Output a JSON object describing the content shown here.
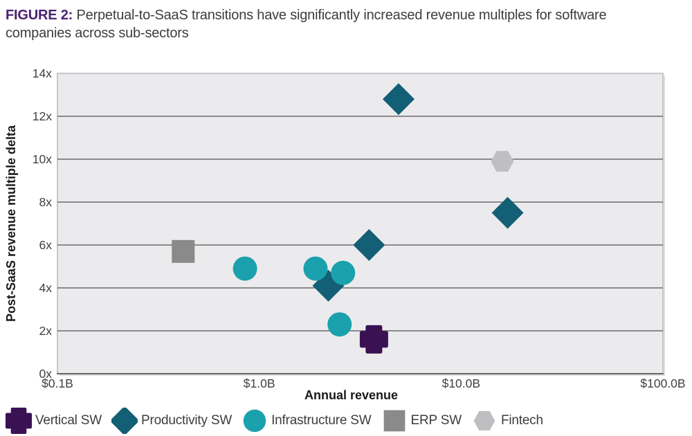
{
  "figure": {
    "label": "FIGURE 2:",
    "title": "Perpetual-to-SaaS transitions have significantly increased revenue multiples for software companies across sub-sectors"
  },
  "colors": {
    "accent_purple": "#4B2170",
    "title_text": "#3D3D3D",
    "plot_bg": "#EBEBED",
    "plot_frame": "#C8C8CA",
    "plot_shadow": "#DEDEE0",
    "gridline": "#525252",
    "axis_line": "#474747",
    "tick_text": "#414141",
    "axis_title_text": "#1A1A1A",
    "legend_text": "#3D3D3D",
    "vertical_sw": "#3A1254",
    "productivity_sw": "#135F76",
    "infrastructure_sw": "#1BA1AD",
    "erp_sw": "#8A8A8A",
    "fintech": "#BFBFC1"
  },
  "chart_data": {
    "type": "scatter",
    "title": "Perpetual-to-SaaS transitions have significantly increased revenue multiples for software companies across sub-sectors",
    "xlabel": "Annual revenue",
    "ylabel": "Post-SaaS revenue multiple delta",
    "x_scale": "log",
    "x_unit": "billions USD",
    "y_unit": "revenue multiple (x)",
    "xlim": [
      0.1,
      100
    ],
    "ylim": [
      0,
      14
    ],
    "grid": "horizontal",
    "legend_position": "bottom",
    "x_ticks": [
      {
        "value": 0.1,
        "label": "$0.1B"
      },
      {
        "value": 1.0,
        "label": "$1.0B"
      },
      {
        "value": 10.0,
        "label": "$10.0B"
      },
      {
        "value": 100.0,
        "label": "$100.0B"
      }
    ],
    "y_ticks": [
      {
        "value": 0,
        "label": "0x"
      },
      {
        "value": 2,
        "label": "2x"
      },
      {
        "value": 4,
        "label": "4x"
      },
      {
        "value": 6,
        "label": "6x"
      },
      {
        "value": 8,
        "label": "8x"
      },
      {
        "value": 10,
        "label": "10x"
      },
      {
        "value": 12,
        "label": "12x"
      },
      {
        "value": 14,
        "label": "14x"
      }
    ],
    "series": [
      {
        "name": "Vertical SW",
        "marker": "plus",
        "color": "#3A1254",
        "points": [
          {
            "x": 3.7,
            "y": 1.6
          }
        ]
      },
      {
        "name": "Productivity SW",
        "marker": "diamond",
        "color": "#135F76",
        "points": [
          {
            "x": 4.9,
            "y": 12.8
          },
          {
            "x": 17.0,
            "y": 7.5
          },
          {
            "x": 3.5,
            "y": 6.0
          },
          {
            "x": 2.2,
            "y": 4.1
          }
        ]
      },
      {
        "name": "Infrastructure SW",
        "marker": "circle",
        "color": "#1BA1AD",
        "points": [
          {
            "x": 0.85,
            "y": 4.9
          },
          {
            "x": 1.9,
            "y": 4.9
          },
          {
            "x": 2.6,
            "y": 4.7
          },
          {
            "x": 2.5,
            "y": 2.3
          }
        ]
      },
      {
        "name": "ERP SW",
        "marker": "square",
        "color": "#8A8A8A",
        "points": [
          {
            "x": 0.42,
            "y": 5.7
          }
        ]
      },
      {
        "name": "Fintech",
        "marker": "hexagon",
        "color": "#BFBFC1",
        "points": [
          {
            "x": 16.0,
            "y": 9.9
          }
        ]
      }
    ],
    "draw_order": [
      "Vertical SW",
      "Productivity SW",
      "ERP SW",
      "Fintech",
      "Infrastructure SW"
    ]
  }
}
